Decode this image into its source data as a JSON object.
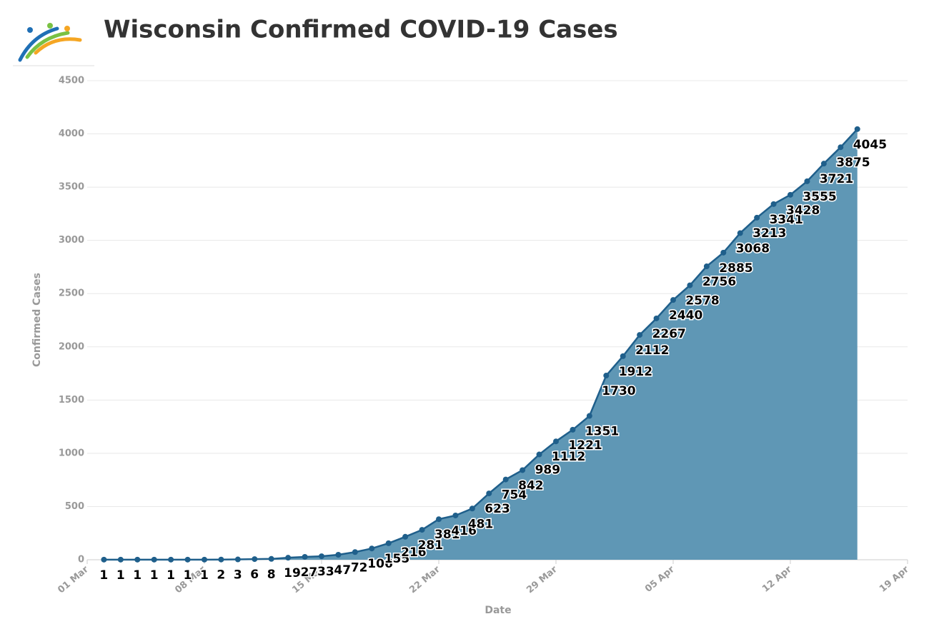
{
  "chart_data": {
    "type": "area",
    "title": "Wisconsin Confirmed COVID-19 Cases",
    "x_label": "Date",
    "y_label": "Confirmed Cases",
    "x": [
      "03-02",
      "03-03",
      "03-04",
      "03-05",
      "03-06",
      "03-07",
      "03-08",
      "03-09",
      "03-10",
      "03-11",
      "03-12",
      "03-13",
      "03-14",
      "03-15",
      "03-16",
      "03-17",
      "03-18",
      "03-19",
      "03-20",
      "03-21",
      "03-22",
      "03-23",
      "03-24",
      "03-25",
      "03-26",
      "03-27",
      "03-28",
      "03-29",
      "03-30",
      "03-31",
      "04-01",
      "04-02",
      "04-03",
      "04-04",
      "04-05",
      "04-06",
      "04-07",
      "04-08",
      "04-09",
      "04-10",
      "04-11",
      "04-12",
      "04-13",
      "04-14",
      "04-15",
      "04-16"
    ],
    "series": [
      {
        "name": "Confirmed Cases",
        "color": "#1f5f8b",
        "fill": "#5f97b5",
        "values": [
          1,
          1,
          1,
          1,
          1,
          1,
          1,
          2,
          3,
          6,
          8,
          19,
          27,
          33,
          47,
          72,
          106,
          155,
          216,
          281,
          381,
          416,
          481,
          623,
          754,
          842,
          989,
          1112,
          1221,
          1351,
          1730,
          1912,
          2112,
          2267,
          2440,
          2578,
          2756,
          2885,
          3068,
          3213,
          3341,
          3428,
          3555,
          3721,
          3875,
          4045
        ]
      }
    ],
    "xlim": [
      "03-01",
      "04-19"
    ],
    "xticks": [
      {
        "value": "03-01",
        "label": "01 Mar"
      },
      {
        "value": "03-08",
        "label": "08 Mar"
      },
      {
        "value": "03-15",
        "label": "15 Mar"
      },
      {
        "value": "03-22",
        "label": "22 Mar"
      },
      {
        "value": "03-29",
        "label": "29 Mar"
      },
      {
        "value": "04-05",
        "label": "05 Apr"
      },
      {
        "value": "04-12",
        "label": "12 Apr"
      },
      {
        "value": "04-19",
        "label": "19 Apr"
      }
    ],
    "ylim": [
      0,
      4500
    ],
    "yticks": [
      0,
      500,
      1000,
      1500,
      2000,
      2500,
      3000,
      3500,
      4000,
      4500
    ],
    "grid": true
  }
}
